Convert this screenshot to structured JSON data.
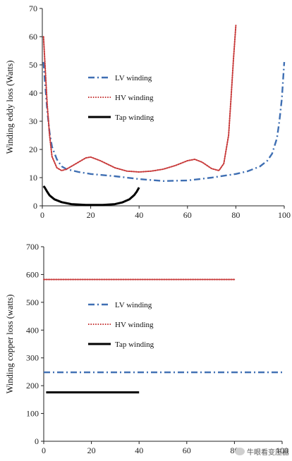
{
  "chart_data": [
    {
      "type": "line",
      "ylabel": "Winding eddy loss (Watts)",
      "xlim": [
        0,
        100
      ],
      "ylim": [
        0,
        70
      ],
      "xticks": [
        0,
        20,
        40,
        60,
        80,
        100
      ],
      "yticks": [
        0,
        10,
        20,
        30,
        40,
        50,
        60,
        70
      ],
      "legend_position": "center-left",
      "series": [
        {
          "name": "LV winding",
          "color": "#3f6fb3",
          "style": "dashdot",
          "x": [
            0.5,
            1,
            2,
            3,
            4,
            6,
            8,
            10,
            15,
            20,
            30,
            40,
            50,
            60,
            70,
            80,
            85,
            90,
            93,
            95,
            97,
            98,
            99,
            100
          ],
          "y": [
            51,
            45,
            34,
            26,
            21,
            16.5,
            14,
            13,
            12,
            11.3,
            10.5,
            9.5,
            8.8,
            9,
            10,
            11.3,
            12.3,
            14,
            16,
            18.5,
            24,
            30,
            38,
            51
          ]
        },
        {
          "name": "HV winding",
          "color": "#c83a3a",
          "style": "dotted",
          "x": [
            0.5,
            1,
            2,
            3,
            4,
            6,
            8,
            10,
            14,
            18,
            20,
            24,
            30,
            35,
            40,
            45,
            50,
            55,
            60,
            63,
            66,
            70,
            73,
            75,
            77,
            78,
            79,
            80
          ],
          "y": [
            60,
            52,
            36,
            25,
            17.5,
            13.5,
            12.5,
            13,
            15,
            17,
            17.3,
            16,
            13.5,
            12.3,
            12,
            12.3,
            13,
            14.3,
            16,
            16.5,
            15.5,
            13.2,
            12.5,
            15,
            25,
            38,
            52,
            64
          ]
        },
        {
          "name": "Tap winding",
          "color": "#000000",
          "style": "solid",
          "x": [
            0.5,
            1,
            2,
            3,
            5,
            8,
            12,
            18,
            25,
            30,
            33,
            36,
            38,
            39,
            40
          ],
          "y": [
            7,
            6.5,
            5,
            3.7,
            2.3,
            1.3,
            0.6,
            0.3,
            0.3,
            0.6,
            1.2,
            2.3,
            3.8,
            5,
            6.5
          ]
        }
      ]
    },
    {
      "type": "line",
      "ylabel": "Winding copper loss (watts)",
      "xlim": [
        0,
        100
      ],
      "ylim": [
        0,
        700
      ],
      "xticks": [
        0,
        20,
        40,
        60,
        80,
        100
      ],
      "yticks": [
        0,
        100,
        200,
        300,
        400,
        500,
        600,
        700
      ],
      "legend_position": "center-left",
      "series": [
        {
          "name": "LV winding",
          "color": "#3f6fb3",
          "style": "dashdot",
          "x": [
            0,
            100
          ],
          "y": [
            248,
            248
          ]
        },
        {
          "name": "HV winding",
          "color": "#c83a3a",
          "style": "dotted",
          "x": [
            0,
            80
          ],
          "y": [
            582,
            582
          ]
        },
        {
          "name": "Tap winding",
          "color": "#000000",
          "style": "solid",
          "x": [
            1,
            40
          ],
          "y": [
            176,
            176
          ]
        }
      ]
    }
  ],
  "watermark": {
    "text": "牛眼看变压器",
    "icon": "wechat-icon"
  }
}
